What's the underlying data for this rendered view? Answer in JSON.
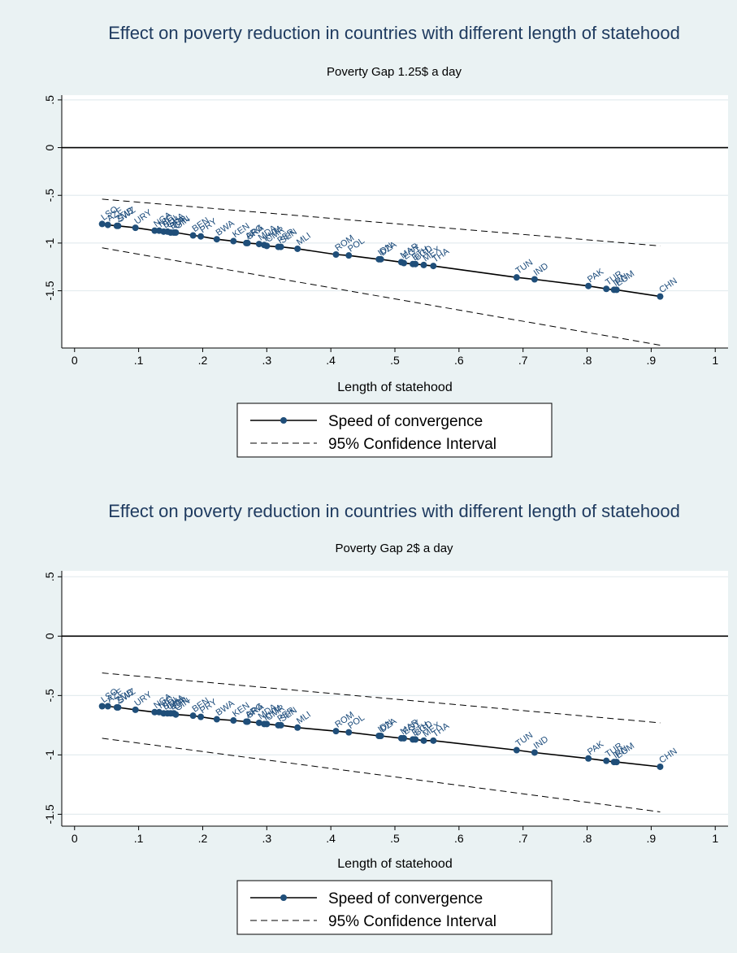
{
  "chart_data": [
    {
      "type": "line",
      "title": "Effect on poverty reduction in countries with different length of statehood",
      "subtitle": "Poverty Gap 1.25$ a day",
      "xlabel": "Length of statehood",
      "ylabel": "",
      "xlim": [
        -0.02,
        1.02
      ],
      "ylim": [
        -2.1,
        0.55
      ],
      "xticks": [
        "0",
        ".1",
        ".2",
        ".3",
        ".4",
        ".5",
        ".6",
        ".7",
        ".8",
        ".9",
        "1"
      ],
      "yticks": [
        "-1.5",
        "-1",
        "-.5",
        "0",
        ".5"
      ],
      "grid": true,
      "reference_line_y": 0,
      "legend_position": "bottom",
      "series": [
        {
          "name": "Speed of convergence",
          "style": "solid-with-markers",
          "points": [
            {
              "x": 0.043,
              "y": -0.8,
              "label": "LSO"
            },
            {
              "x": 0.052,
              "y": -0.81,
              "label": "AZE"
            },
            {
              "x": 0.066,
              "y": -0.82,
              "label": "ZMB"
            },
            {
              "x": 0.068,
              "y": -0.82,
              "label": "SWZ"
            },
            {
              "x": 0.095,
              "y": -0.84,
              "label": "URY"
            },
            {
              "x": 0.125,
              "y": -0.87,
              "label": "NGA"
            },
            {
              "x": 0.132,
              "y": -0.87,
              "label": "NIC"
            },
            {
              "x": 0.139,
              "y": -0.88,
              "label": "BOL"
            },
            {
              "x": 0.145,
              "y": -0.88,
              "label": "GHA"
            },
            {
              "x": 0.15,
              "y": -0.89,
              "label": "BDI"
            },
            {
              "x": 0.155,
              "y": -0.89,
              "label": "CHL"
            },
            {
              "x": 0.158,
              "y": -0.89,
              "label": "GIN"
            },
            {
              "x": 0.185,
              "y": -0.92,
              "label": "BEN"
            },
            {
              "x": 0.197,
              "y": -0.93,
              "label": "PRY"
            },
            {
              "x": 0.222,
              "y": -0.96,
              "label": "BWA"
            },
            {
              "x": 0.248,
              "y": -0.98,
              "label": "KEN"
            },
            {
              "x": 0.268,
              "y": -1.0,
              "label": "ARG"
            },
            {
              "x": 0.27,
              "y": -1.0,
              "label": "BRA"
            },
            {
              "x": 0.288,
              "y": -1.01,
              "label": "MDA"
            },
            {
              "x": 0.296,
              "y": -1.02,
              "label": "KHM"
            },
            {
              "x": 0.3,
              "y": -1.03,
              "label": "CMR"
            },
            {
              "x": 0.318,
              "y": -1.04,
              "label": "PER"
            },
            {
              "x": 0.322,
              "y": -1.04,
              "label": "SEN"
            },
            {
              "x": 0.348,
              "y": -1.06,
              "label": "MLI"
            },
            {
              "x": 0.408,
              "y": -1.12,
              "label": "ROM"
            },
            {
              "x": 0.428,
              "y": -1.13,
              "label": "POL"
            },
            {
              "x": 0.475,
              "y": -1.17,
              "label": "IDN"
            },
            {
              "x": 0.478,
              "y": -1.17,
              "label": "DZA"
            },
            {
              "x": 0.51,
              "y": -1.2,
              "label": "MAR"
            },
            {
              "x": 0.514,
              "y": -1.21,
              "label": "EGY"
            },
            {
              "x": 0.528,
              "y": -1.22,
              "label": "ETH"
            },
            {
              "x": 0.532,
              "y": -1.22,
              "label": "BGD"
            },
            {
              "x": 0.545,
              "y": -1.23,
              "label": "MEX"
            },
            {
              "x": 0.56,
              "y": -1.24,
              "label": "THA"
            },
            {
              "x": 0.69,
              "y": -1.36,
              "label": "TUN"
            },
            {
              "x": 0.718,
              "y": -1.38,
              "label": "IND"
            },
            {
              "x": 0.802,
              "y": -1.45,
              "label": "PAK"
            },
            {
              "x": 0.83,
              "y": -1.48,
              "label": "TUR"
            },
            {
              "x": 0.842,
              "y": -1.49,
              "label": "IRN"
            },
            {
              "x": 0.846,
              "y": -1.49,
              "label": "EGM"
            },
            {
              "x": 0.914,
              "y": -1.56,
              "label": "CHN"
            }
          ]
        },
        {
          "name": "95% Confidence Interval",
          "style": "dashed",
          "upper": [
            {
              "x": 0.043,
              "y": -0.54
            },
            {
              "x": 0.914,
              "y": -1.03
            }
          ],
          "lower": [
            {
              "x": 0.043,
              "y": -1.05
            },
            {
              "x": 0.914,
              "y": -2.07
            }
          ]
        }
      ]
    },
    {
      "type": "line",
      "title": "Effect on poverty reduction in countries with different length of statehood",
      "subtitle": "Poverty Gap 2$ a day",
      "xlabel": "Length of statehood",
      "ylabel": "",
      "xlim": [
        -0.02,
        1.02
      ],
      "ylim": [
        -1.6,
        0.55
      ],
      "xticks": [
        "0",
        ".1",
        ".2",
        ".3",
        ".4",
        ".5",
        ".6",
        ".7",
        ".8",
        ".9",
        "1"
      ],
      "yticks": [
        "-1.5",
        "-1",
        "-.5",
        "0",
        ".5"
      ],
      "grid": true,
      "reference_line_y": 0,
      "legend_position": "bottom",
      "series": [
        {
          "name": "Speed of convergence",
          "style": "solid-with-markers",
          "points": [
            {
              "x": 0.043,
              "y": -0.59,
              "label": "LSO"
            },
            {
              "x": 0.052,
              "y": -0.59,
              "label": "AZE"
            },
            {
              "x": 0.066,
              "y": -0.6,
              "label": "ZMB"
            },
            {
              "x": 0.068,
              "y": -0.6,
              "label": "SWZ"
            },
            {
              "x": 0.095,
              "y": -0.62,
              "label": "URY"
            },
            {
              "x": 0.125,
              "y": -0.64,
              "label": "NGA"
            },
            {
              "x": 0.132,
              "y": -0.64,
              "label": "NIC"
            },
            {
              "x": 0.139,
              "y": -0.65,
              "label": "BOL"
            },
            {
              "x": 0.145,
              "y": -0.65,
              "label": "GHA"
            },
            {
              "x": 0.15,
              "y": -0.65,
              "label": "BDI"
            },
            {
              "x": 0.155,
              "y": -0.65,
              "label": "CHL"
            },
            {
              "x": 0.158,
              "y": -0.66,
              "label": "GIN"
            },
            {
              "x": 0.185,
              "y": -0.67,
              "label": "BEN"
            },
            {
              "x": 0.197,
              "y": -0.68,
              "label": "PRY"
            },
            {
              "x": 0.222,
              "y": -0.7,
              "label": "BWA"
            },
            {
              "x": 0.248,
              "y": -0.71,
              "label": "KEN"
            },
            {
              "x": 0.268,
              "y": -0.72,
              "label": "ARG"
            },
            {
              "x": 0.27,
              "y": -0.72,
              "label": "BRA"
            },
            {
              "x": 0.288,
              "y": -0.73,
              "label": "MDA"
            },
            {
              "x": 0.296,
              "y": -0.74,
              "label": "KHM"
            },
            {
              "x": 0.3,
              "y": -0.74,
              "label": "CMR"
            },
            {
              "x": 0.318,
              "y": -0.75,
              "label": "PER"
            },
            {
              "x": 0.322,
              "y": -0.75,
              "label": "SEN"
            },
            {
              "x": 0.348,
              "y": -0.77,
              "label": "MLI"
            },
            {
              "x": 0.408,
              "y": -0.8,
              "label": "ROM"
            },
            {
              "x": 0.428,
              "y": -0.81,
              "label": "POL"
            },
            {
              "x": 0.475,
              "y": -0.84,
              "label": "IDN"
            },
            {
              "x": 0.478,
              "y": -0.84,
              "label": "DZA"
            },
            {
              "x": 0.51,
              "y": -0.86,
              "label": "MAR"
            },
            {
              "x": 0.514,
              "y": -0.86,
              "label": "EGY"
            },
            {
              "x": 0.528,
              "y": -0.87,
              "label": "ETH"
            },
            {
              "x": 0.532,
              "y": -0.87,
              "label": "BGD"
            },
            {
              "x": 0.545,
              "y": -0.88,
              "label": "MEX"
            },
            {
              "x": 0.56,
              "y": -0.88,
              "label": "THA"
            },
            {
              "x": 0.69,
              "y": -0.96,
              "label": "TUN"
            },
            {
              "x": 0.718,
              "y": -0.98,
              "label": "IND"
            },
            {
              "x": 0.802,
              "y": -1.03,
              "label": "PAK"
            },
            {
              "x": 0.83,
              "y": -1.05,
              "label": "TUR"
            },
            {
              "x": 0.842,
              "y": -1.06,
              "label": "IRN"
            },
            {
              "x": 0.846,
              "y": -1.06,
              "label": "EGM"
            },
            {
              "x": 0.914,
              "y": -1.1,
              "label": "CHN"
            }
          ]
        },
        {
          "name": "95% Confidence Interval",
          "style": "dashed",
          "upper": [
            {
              "x": 0.043,
              "y": -0.31
            },
            {
              "x": 0.914,
              "y": -0.73
            }
          ],
          "lower": [
            {
              "x": 0.043,
              "y": -0.86
            },
            {
              "x": 0.914,
              "y": -1.48
            }
          ]
        }
      ]
    }
  ]
}
